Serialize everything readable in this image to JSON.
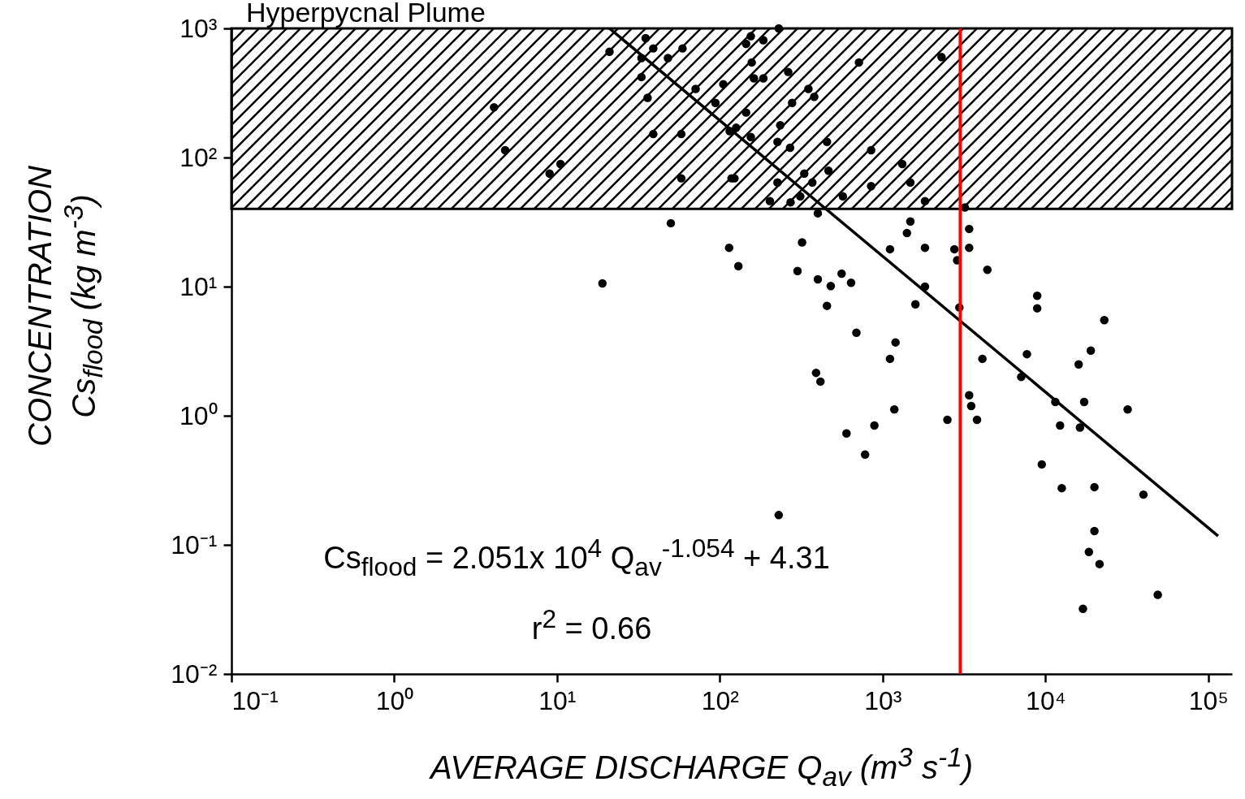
{
  "chart_data": {
    "type": "scatter",
    "xlabel": "AVERAGE DISCHARGE Q$_{av}$ (m$^{3}$ s$^{-1}$)",
    "ylabel": "CONCENTRATION\nCs$_{flood}$ (kg m$^{-3}$)",
    "log": "xy",
    "grid": false,
    "xlim": [
      0.1,
      140000
    ],
    "ylim": [
      0.01,
      1000
    ],
    "xticks": [
      {
        "value": 0.1,
        "label": "10⁻¹"
      },
      {
        "value": 1,
        "label": "10⁰"
      },
      {
        "value": 10,
        "label": "10¹"
      },
      {
        "value": 100,
        "label": "10²"
      },
      {
        "value": 1000,
        "label": "10³"
      },
      {
        "value": 10000,
        "label": "10⁴"
      },
      {
        "value": 100000,
        "label": "10⁵"
      }
    ],
    "yticks": [
      {
        "value": 0.01,
        "label": "10⁻²"
      },
      {
        "value": 0.1,
        "label": "10⁻¹"
      },
      {
        "value": 1,
        "label": "10⁰"
      },
      {
        "value": 10,
        "label": "10¹"
      },
      {
        "value": 100,
        "label": "10²"
      },
      {
        "value": 1000,
        "label": "10³"
      }
    ],
    "series": [
      {
        "marker": "circle",
        "color": "#000000",
        "x": [
          4.1,
          4.8,
          9.0,
          10.5,
          19,
          50,
          230,
          21,
          35,
          39,
          48,
          59,
          33,
          33,
          36,
          71,
          94,
          105,
          39,
          58,
          58,
          114,
          118,
          115,
          230,
          155,
          185,
          145,
          157,
          263,
          185,
          162,
          350,
          380,
          278,
          145,
          715,
          2300,
          235,
          126,
          155,
          226,
          270,
          455,
          850,
          1320,
          123,
          226,
          330,
          370,
          465,
          850,
          1480,
          203,
          312,
          272,
          570,
          1820,
          3200,
          400,
          1480,
          1410,
          3400,
          320,
          1110,
          1820,
          2760,
          3400,
          2870,
          4400,
          1820,
          1590,
          2960,
          8900,
          8900,
          23000,
          1200,
          1110,
          4100,
          7700,
          19000,
          16000,
          7100,
          11500,
          17300,
          32000,
          3400,
          3500,
          3800,
          2500,
          1180,
          12300,
          16300,
          9500,
          12600,
          20000,
          40000,
          20000,
          18500,
          21500,
          49000,
          17000,
          130,
          300,
          400,
          560,
          480,
          640,
          455,
          690,
          390,
          415,
          890,
          600,
          780
        ],
        "values": [
          245,
          114,
          75,
          89,
          10.6,
          31,
          0.17,
          660,
          840,
          700,
          590,
          700,
          590,
          420,
          290,
          340,
          265,
          370,
          152,
          152,
          69,
          20,
          69,
          160,
          1000,
          870,
          810,
          760,
          545,
          460,
          410,
          410,
          340,
          295,
          265,
          223,
          545,
          600,
          178,
          170,
          144,
          132,
          119,
          132,
          114,
          89,
          69,
          64,
          75,
          64,
          79,
          60,
          64,
          46,
          50,
          45,
          50,
          46,
          41,
          37,
          32,
          26,
          28,
          22,
          19.5,
          20,
          19.5,
          20,
          16,
          13.5,
          10,
          7.3,
          6.9,
          8.5,
          6.8,
          5.5,
          3.7,
          2.76,
          2.76,
          3.0,
          3.2,
          2.5,
          2.0,
          1.28,
          1.28,
          1.12,
          1.44,
          1.19,
          0.93,
          0.93,
          1.12,
          0.84,
          0.81,
          0.42,
          0.275,
          0.28,
          0.245,
          0.128,
          0.088,
          0.071,
          0.041,
          0.032,
          14.4,
          13.2,
          11.4,
          12.6,
          10.1,
          10.7,
          7.1,
          4.4,
          2.15,
          1.84,
          0.84,
          0.73,
          0.5
        ]
      },
      {
        "type": "line",
        "marker": "none",
        "color": "#000000",
        "x": [
          21,
          115000
        ],
        "values": [
          1000,
          0.117
        ]
      }
    ],
    "bands": [
      {
        "axis": "y",
        "from": 40,
        "to": 1000,
        "label": "Hyperpycnal Plume",
        "color": "#000000"
      }
    ],
    "ref_lines": [
      {
        "axis": "x",
        "value": 3000,
        "color": "#ff0000"
      }
    ],
    "annotations": [
      "Cs$_{flood}$ = 2.051x 10$^{4}$ Q$_{av}$$^{-1.054}$ + 4.31",
      "r$^{2}$ = 0.66"
    ]
  }
}
